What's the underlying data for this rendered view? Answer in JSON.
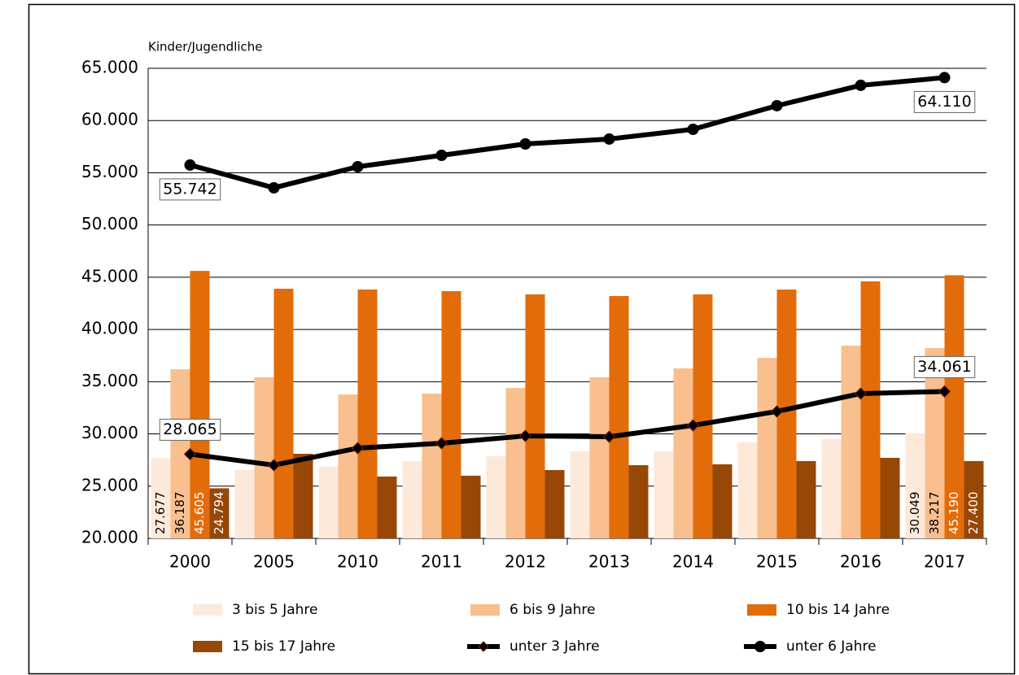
{
  "chart_data": {
    "type": "bar",
    "y_label": "Kinder/Jugendliche",
    "categories": [
      "2000",
      "2005",
      "2010",
      "2011",
      "2012",
      "2013",
      "2014",
      "2015",
      "2016",
      "2017"
    ],
    "ylim": [
      20000,
      65000
    ],
    "yticks": [
      {
        "value": 20000,
        "label": "20.000"
      },
      {
        "value": 25000,
        "label": "25.000"
      },
      {
        "value": 30000,
        "label": "30.000"
      },
      {
        "value": 35000,
        "label": "35.000"
      },
      {
        "value": 40000,
        "label": "40.000"
      },
      {
        "value": 45000,
        "label": "45.000"
      },
      {
        "value": 50000,
        "label": "50.000"
      },
      {
        "value": 55000,
        "label": "55.000"
      },
      {
        "value": 60000,
        "label": "60.000"
      },
      {
        "value": 65000,
        "label": "65.000"
      }
    ],
    "grid": true,
    "series": [
      {
        "name": "3 bis 5 Jahre",
        "type": "bar",
        "color": "#fde9d9",
        "label_color": "#000000",
        "values": [
          27677,
          26540,
          26850,
          27400,
          27860,
          28330,
          28330,
          29190,
          29500,
          30049
        ],
        "value_labels": [
          "27.677",
          null,
          null,
          null,
          null,
          null,
          null,
          null,
          null,
          "30.049"
        ]
      },
      {
        "name": "6 bis 9 Jahre",
        "type": "bar",
        "color": "#f9bf8f",
        "label_color": "#000000",
        "values": [
          36187,
          35420,
          33780,
          33860,
          34400,
          35420,
          36270,
          37280,
          38450,
          38217
        ],
        "value_labels": [
          "36.187",
          null,
          null,
          null,
          null,
          null,
          null,
          null,
          null,
          "38.217"
        ]
      },
      {
        "name": "10 bis 14 Jahre",
        "type": "bar",
        "color": "#e36c0a",
        "label_color": "#ffffff",
        "values": [
          45605,
          43900,
          43820,
          43670,
          43360,
          43200,
          43360,
          43820,
          44600,
          45190
        ],
        "value_labels": [
          "45.605",
          null,
          null,
          null,
          null,
          null,
          null,
          null,
          null,
          "45.190"
        ]
      },
      {
        "name": "15 bis 17 Jahre",
        "type": "bar",
        "color": "#974706",
        "label_color": "#ffffff",
        "values": [
          24794,
          28100,
          25920,
          26000,
          26540,
          27010,
          27090,
          27400,
          27710,
          27400
        ],
        "value_labels": [
          "24.794",
          null,
          null,
          null,
          null,
          null,
          null,
          null,
          null,
          "27.400"
        ]
      },
      {
        "name": "unter 3 Jahre",
        "type": "line",
        "marker": "diamond",
        "color": "#000000",
        "values": [
          28065,
          27010,
          28640,
          29110,
          29810,
          29730,
          30820,
          32150,
          33860,
          34061
        ],
        "value_labels": [
          "28.065",
          null,
          null,
          null,
          null,
          null,
          null,
          null,
          null,
          "34.061"
        ]
      },
      {
        "name": "unter 6 Jahre",
        "type": "line",
        "marker": "circle",
        "color": "#000000",
        "values": [
          55742,
          53560,
          55580,
          56670,
          57760,
          58230,
          59160,
          61420,
          63370,
          64110
        ],
        "value_labels": [
          "55.742",
          null,
          null,
          null,
          null,
          null,
          null,
          null,
          null,
          "64.110"
        ]
      }
    ]
  }
}
